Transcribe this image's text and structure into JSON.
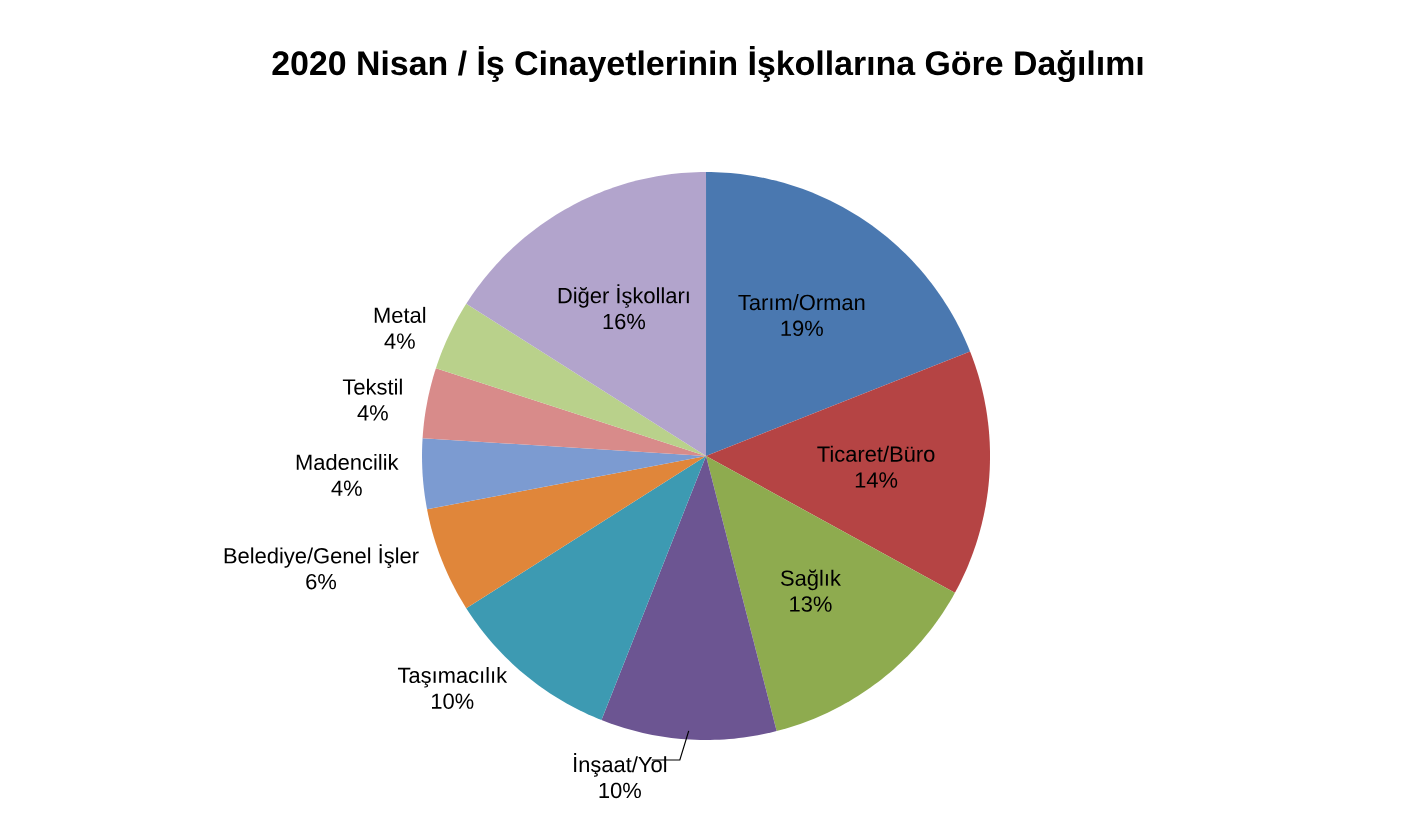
{
  "chart_data": {
    "type": "pie",
    "title": "2020 Nisan / İş Cinayetlerinin İşkollarına Göre Dağılımı",
    "categories": [
      "Tarım/Orman",
      "Ticaret/Büro",
      "Sağlık",
      "İnşaat/Yol",
      "Taşımacılık",
      "Belediye/Genel İşler",
      "Madencilik",
      "Tekstil",
      "Metal",
      "Diğer İşkolları"
    ],
    "values": [
      19,
      14,
      13,
      10,
      10,
      6,
      4,
      4,
      4,
      16
    ],
    "value_labels": [
      "19%",
      "14%",
      "13%",
      "10%",
      "10%",
      "6%",
      "4%",
      "4%",
      "4%",
      "16%"
    ],
    "colors": [
      "#4a78b0",
      "#b54444",
      "#8eab4f",
      "#6c5592",
      "#3d9ab2",
      "#e0863a",
      "#7c9bd1",
      "#d88b8a",
      "#b9d18b",
      "#b2a4cc"
    ]
  }
}
